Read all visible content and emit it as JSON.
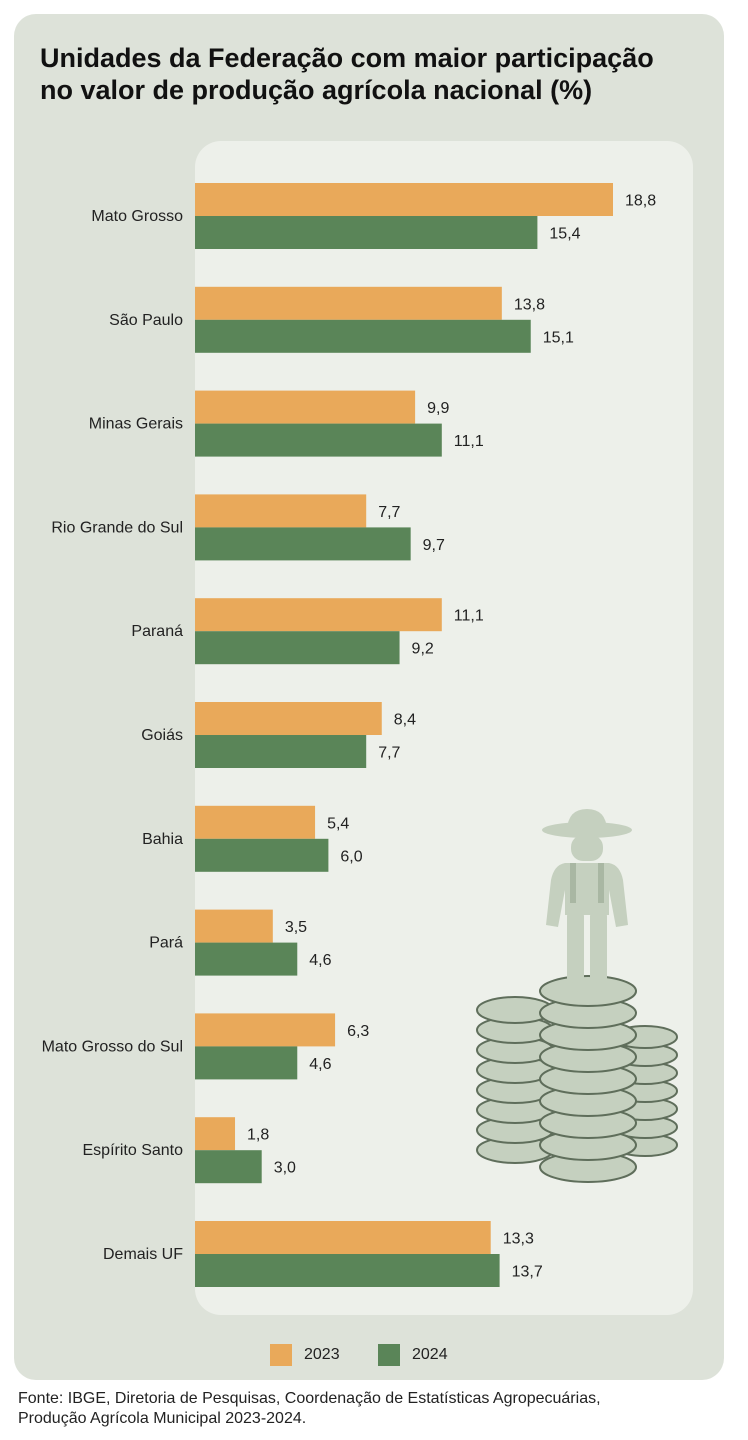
{
  "title": {
    "line1": "Unidades da Federação com maior participação",
    "line2": "no valor de produção agrícola nacional (%)"
  },
  "legend": {
    "items": [
      {
        "label": "2023",
        "color": "#e9a95a"
      },
      {
        "label": "2024",
        "color": "#5a8558"
      }
    ]
  },
  "source": {
    "line1": "Fonte: IBGE, Diretoria de Pesquisas, Coordenação de Estatísticas Agropecuárias,",
    "line2": "Produção Agrícola Municipal 2023-2024."
  },
  "illustration": {
    "icon": "farmer-on-coin-stacks-icon"
  },
  "chart_data": {
    "type": "bar",
    "orientation": "horizontal",
    "categories": [
      "Mato Grosso",
      "São Paulo",
      "Minas Gerais",
      "Rio Grande do Sul",
      "Paraná",
      "Goiás",
      "Bahia",
      "Pará",
      "Mato Grosso do Sul",
      "Espírito Santo",
      "Demais UF"
    ],
    "series": [
      {
        "name": "2023",
        "color": "#e9a95a",
        "values": [
          18.8,
          13.8,
          9.9,
          7.7,
          11.1,
          8.4,
          5.4,
          3.5,
          6.3,
          1.8,
          13.3
        ],
        "labels": [
          "18,8",
          "13,8",
          "9,9",
          "7,7",
          "11,1",
          "8,4",
          "5,4",
          "3,5",
          "6,3",
          "1,8",
          "13,3"
        ]
      },
      {
        "name": "2024",
        "color": "#5a8558",
        "values": [
          15.4,
          15.1,
          11.1,
          9.7,
          9.2,
          7.7,
          6.0,
          4.6,
          4.6,
          3.0,
          13.7
        ],
        "labels": [
          "15,4",
          "15,1",
          "11,1",
          "9,7",
          "9,2",
          "7,7",
          "6,0",
          "4,6",
          "4,6",
          "3,0",
          "13,7"
        ]
      }
    ],
    "xlim": [
      0,
      20
    ],
    "grid": false,
    "legend_position": "bottom"
  }
}
